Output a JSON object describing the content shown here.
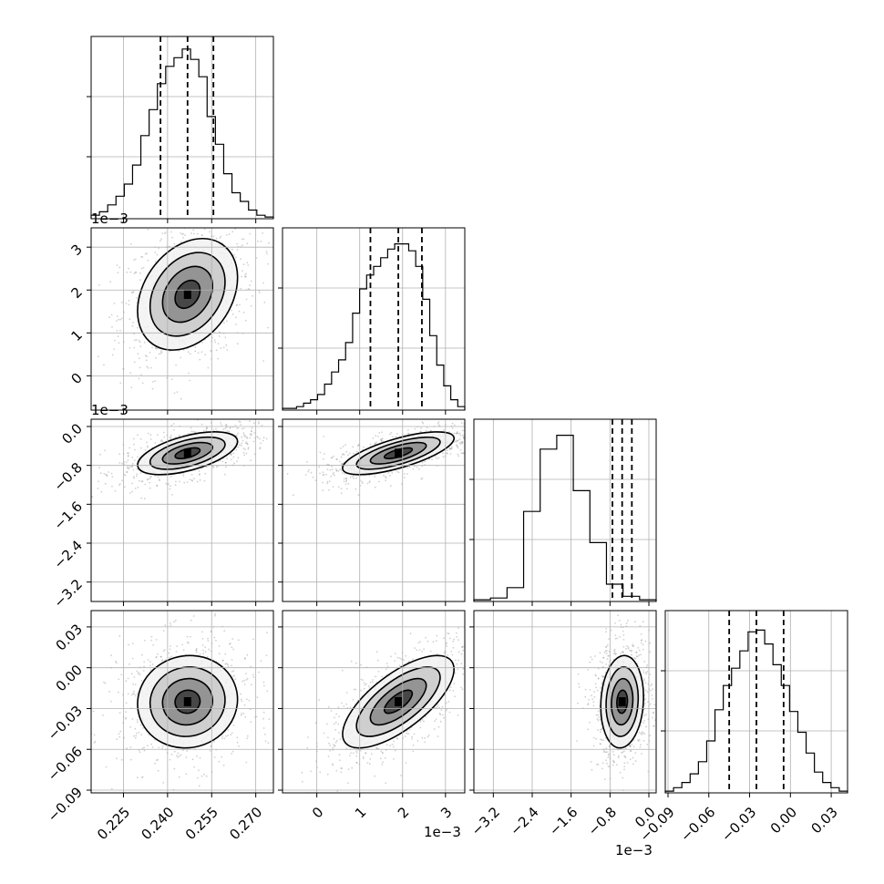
{
  "figure": {
    "type": "corner plot"
  },
  "ticks": {
    "p0": {
      "labels": [
        "0.225",
        "0.240",
        "0.255",
        "0.270"
      ],
      "values": [
        0.225,
        0.24,
        0.255,
        0.27
      ]
    },
    "p1": {
      "labels": [
        "0",
        "1",
        "2",
        "3"
      ],
      "values": [
        0,
        1,
        2,
        3
      ]
    },
    "p2": {
      "labels": [
        "0.0",
        "−0.8",
        "−1.6",
        "−2.4",
        "−3.2"
      ],
      "values": [
        0.0,
        -0.8,
        -1.6,
        -2.4,
        -3.2
      ]
    },
    "p3": {
      "labels": [
        "−0.09",
        "−0.06",
        "−0.03",
        "0.00",
        "0.03"
      ],
      "values": [
        -0.09,
        -0.06,
        -0.03,
        0.0,
        0.03
      ]
    }
  },
  "offset_label": "1e−3",
  "chart_data": {
    "type": "corner",
    "parameters": [
      {
        "id": "p0",
        "range": [
          0.214,
          0.276
        ],
        "scale_label": "",
        "quantiles": [
          0.2376,
          0.2468,
          0.2556
        ],
        "hist": [
          0.02,
          0.04,
          0.08,
          0.13,
          0.2,
          0.31,
          0.48,
          0.63,
          0.78,
          0.88,
          0.93,
          0.98,
          0.92,
          0.82,
          0.59,
          0.43,
          0.26,
          0.15,
          0.1,
          0.05,
          0.02,
          0.01
        ]
      },
      {
        "id": "p1",
        "range": [
          -0.8,
          3.45
        ],
        "scale_label": "1e−3",
        "quantiles": [
          1.25,
          1.9,
          2.45
        ],
        "hist": [
          0.01,
          0.01,
          0.02,
          0.04,
          0.06,
          0.09,
          0.15,
          0.22,
          0.29,
          0.39,
          0.56,
          0.7,
          0.78,
          0.83,
          0.88,
          0.93,
          0.96,
          0.96,
          0.92,
          0.83,
          0.64,
          0.43,
          0.26,
          0.14,
          0.06,
          0.02
        ]
      },
      {
        "id": "p2",
        "range": [
          -3.6,
          0.15
        ],
        "scale_label": "1e−3",
        "quantiles": [
          -0.75,
          -0.55,
          -0.35
        ],
        "hist": [
          0.01,
          0.02,
          0.08,
          0.52,
          0.88,
          0.96,
          0.64,
          0.34,
          0.1,
          0.03,
          0.01
        ]
      },
      {
        "id": "p3",
        "range": [
          -0.092,
          0.042
        ],
        "scale_label": "",
        "quantiles": [
          -0.045,
          -0.025,
          -0.005
        ],
        "hist": [
          0.01,
          0.03,
          0.06,
          0.11,
          0.18,
          0.3,
          0.48,
          0.62,
          0.72,
          0.82,
          0.93,
          0.94,
          0.86,
          0.74,
          0.62,
          0.47,
          0.35,
          0.23,
          0.12,
          0.06,
          0.03,
          0.01
        ]
      }
    ],
    "pairs": [
      {
        "x": "p0",
        "y": "p1",
        "center": [
          0.2468,
          1.9
        ],
        "sd": [
          0.0085,
          0.65
        ],
        "rho": 0.3
      },
      {
        "x": "p0",
        "y": "p2",
        "center": [
          0.2468,
          -0.55
        ],
        "sd": [
          0.0085,
          0.22
        ],
        "rho": 0.55
      },
      {
        "x": "p1",
        "y": "p2",
        "center": [
          1.9,
          -0.55
        ],
        "sd": [
          0.65,
          0.22
        ],
        "rho": 0.7
      },
      {
        "x": "p0",
        "y": "p3",
        "center": [
          0.2468,
          -0.025
        ],
        "sd": [
          0.0085,
          0.017
        ],
        "rho": 0.05
      },
      {
        "x": "p1",
        "y": "p3",
        "center": [
          1.9,
          -0.025
        ],
        "sd": [
          0.65,
          0.017
        ],
        "rho": 0.7
      },
      {
        "x": "p2",
        "y": "p3",
        "center": [
          -0.55,
          -0.025
        ],
        "sd": [
          0.22,
          0.017
        ],
        "rho": 0.1
      }
    ],
    "contour_levels_sigma": [
      0.5,
      1.0,
      1.5,
      2.0
    ],
    "grid": true
  }
}
